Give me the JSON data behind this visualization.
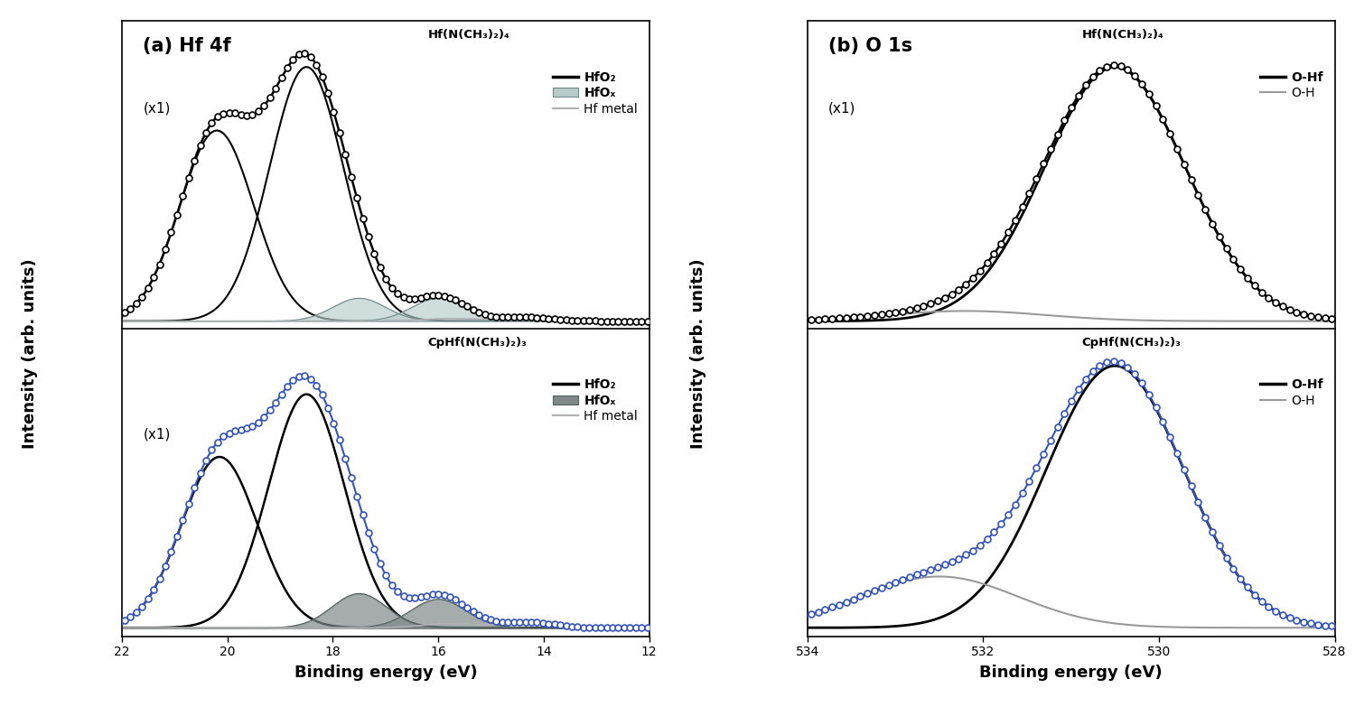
{
  "panel_a_title": "(a) Hf 4f",
  "panel_b_title": "(b) O 1s",
  "xlabel": "Binding energy (eV)",
  "ylabel": "Intensity (arb. units)",
  "xticks_a": [
    22,
    20,
    18,
    16,
    14,
    12
  ],
  "xticks_b": [
    534,
    532,
    530,
    528
  ],
  "precursor_top": "Hf(N(CH₃)₂)₄",
  "precursor_bot": "CpHf(N(CH₃)₂)₃",
  "hfo2_label": "HfO₂",
  "hfox_label": "HfOₓ",
  "metal_label": "Hf metal",
  "ohf_label": "O-Hf",
  "oh_label": "O-H",
  "scale_label": "(x1)",
  "colors": {
    "black": "#000000",
    "gray_light": "#b0b0b0",
    "hfox_fill_top": "#b8cccc",
    "hfox_fill_bot": "#808888",
    "blue": "#3355bb",
    "oh_line": "#999999"
  }
}
